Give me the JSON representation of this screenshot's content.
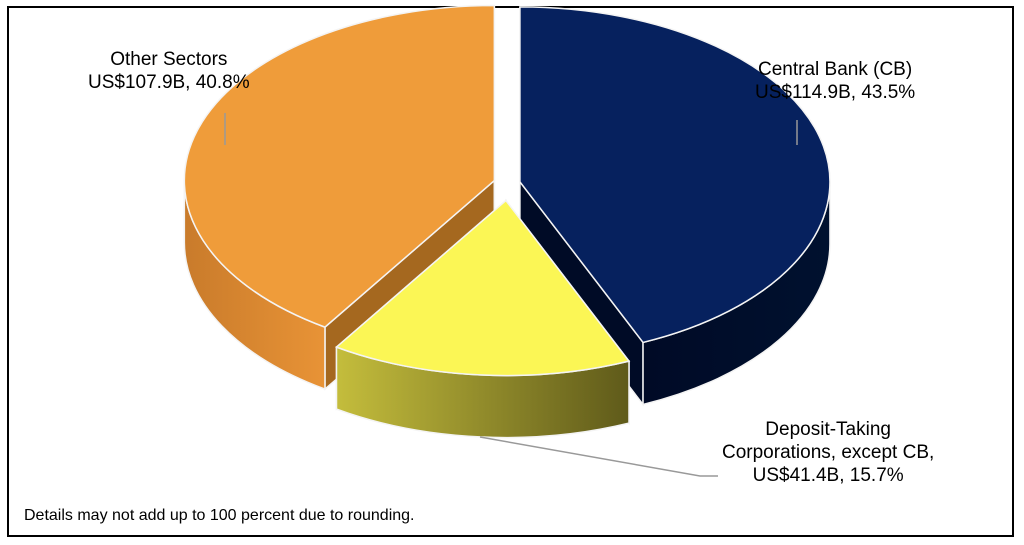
{
  "chart_data": {
    "type": "pie",
    "title": "",
    "slices": [
      {
        "name": "Central Bank (CB)",
        "value_label": "US$114.9B, 43.5%",
        "value": 114.9,
        "percent": 43.5,
        "color": "#06215e",
        "side_color": "#000d2c"
      },
      {
        "name": "Deposit-Taking Corporations, except CB",
        "name_lines": [
          "Deposit-Taking",
          "Corporations, except CB,"
        ],
        "value_label": "US$41.4B, 15.7%",
        "value": 41.4,
        "percent": 15.7,
        "color": "#fbf655",
        "side_color": "#a9a534"
      },
      {
        "name": "Other Sectors",
        "value_label": "US$107.9B, 40.8%",
        "value": 107.9,
        "percent": 40.8,
        "color": "#ef9c3a",
        "side_color": "#c97b2b"
      }
    ],
    "note": "Details may not add up to 100 percent due to rounding."
  }
}
